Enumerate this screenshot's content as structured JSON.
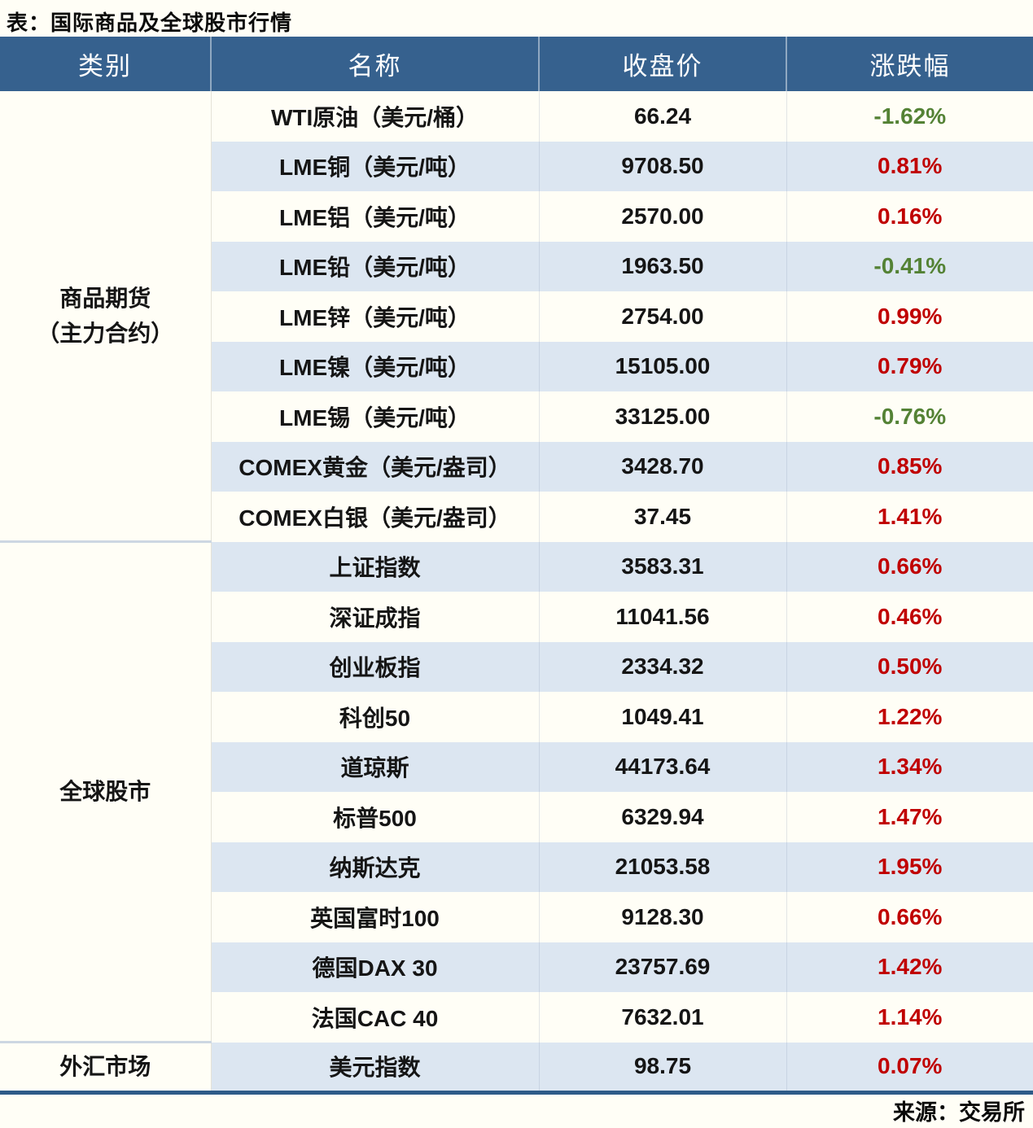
{
  "title": "表：国际商品及全球股市行情",
  "source_note": "来源：交易所",
  "colors": {
    "header_bg": "#36618E",
    "stripe_blue": "#DCE6F1",
    "row_cream": "#FFFEF6",
    "up_red": "#C00000",
    "down_green": "#548235",
    "bottom_border_blue": "#2E5B88",
    "group_separator": "#CDD7E2"
  },
  "chart_data": {
    "type": "table",
    "title": "表：国际商品及全球股市行情",
    "columns": [
      "类别",
      "名称",
      "收盘价",
      "涨跌幅"
    ],
    "source_note": "来源：交易所",
    "groups": [
      {
        "category": "商品期货（主力合约）",
        "category_lines": [
          "商品期货",
          "（主力合约）"
        ],
        "rows": [
          {
            "name": "WTI原油（美元/桶）",
            "close": "66.24",
            "change": "-1.62%"
          },
          {
            "name": "LME铜（美元/吨）",
            "close": "9708.50",
            "change": "0.81%"
          },
          {
            "name": "LME铝（美元/吨）",
            "close": "2570.00",
            "change": "0.16%"
          },
          {
            "name": "LME铅（美元/吨）",
            "close": "1963.50",
            "change": "-0.41%"
          },
          {
            "name": "LME锌（美元/吨）",
            "close": "2754.00",
            "change": "0.99%"
          },
          {
            "name": "LME镍（美元/吨）",
            "close": "15105.00",
            "change": "0.79%"
          },
          {
            "name": "LME锡（美元/吨）",
            "close": "33125.00",
            "change": "-0.76%"
          },
          {
            "name": "COMEX黄金（美元/盎司）",
            "close": "3428.70",
            "change": "0.85%"
          },
          {
            "name": "COMEX白银（美元/盎司）",
            "close": "37.45",
            "change": "1.41%"
          }
        ]
      },
      {
        "category": "全球股市",
        "category_lines": [
          "全球股市"
        ],
        "rows": [
          {
            "name": "上证指数",
            "close": "3583.31",
            "change": "0.66%"
          },
          {
            "name": "深证成指",
            "close": "11041.56",
            "change": "0.46%"
          },
          {
            "name": "创业板指",
            "close": "2334.32",
            "change": "0.50%"
          },
          {
            "name": "科创50",
            "close": "1049.41",
            "change": "1.22%"
          },
          {
            "name": "道琼斯",
            "close": "44173.64",
            "change": "1.34%"
          },
          {
            "name": "标普500",
            "close": "6329.94",
            "change": "1.47%"
          },
          {
            "name": "纳斯达克",
            "close": "21053.58",
            "change": "1.95%"
          },
          {
            "name": "英国富时100",
            "close": "9128.30",
            "change": "0.66%"
          },
          {
            "name": "德国DAX 30",
            "close": "23757.69",
            "change": "1.42%"
          },
          {
            "name": "法国CAC 40",
            "close": "7632.01",
            "change": "1.14%"
          }
        ]
      },
      {
        "category": "外汇市场",
        "category_lines": [
          "外汇市场"
        ],
        "rows": [
          {
            "name": "美元指数",
            "close": "98.75",
            "change": "0.07%"
          }
        ]
      }
    ]
  }
}
